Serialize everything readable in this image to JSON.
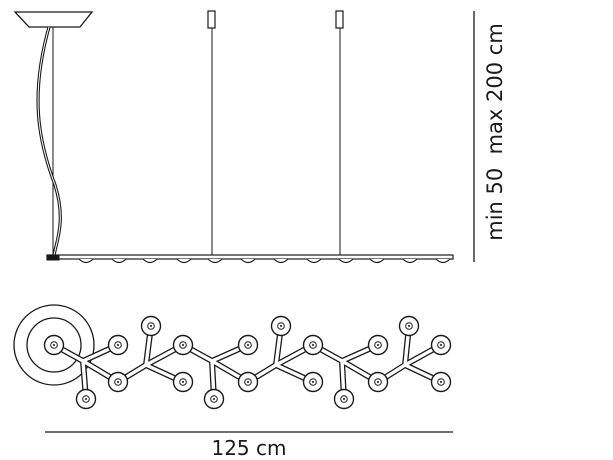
{
  "side_view": {
    "height_dimension_label": "min 50  max 200 cm"
  },
  "top_view": {
    "width_dimension_label": "125 cm"
  },
  "colors": {
    "line": "#1a1a1a",
    "background": "#ffffff"
  }
}
